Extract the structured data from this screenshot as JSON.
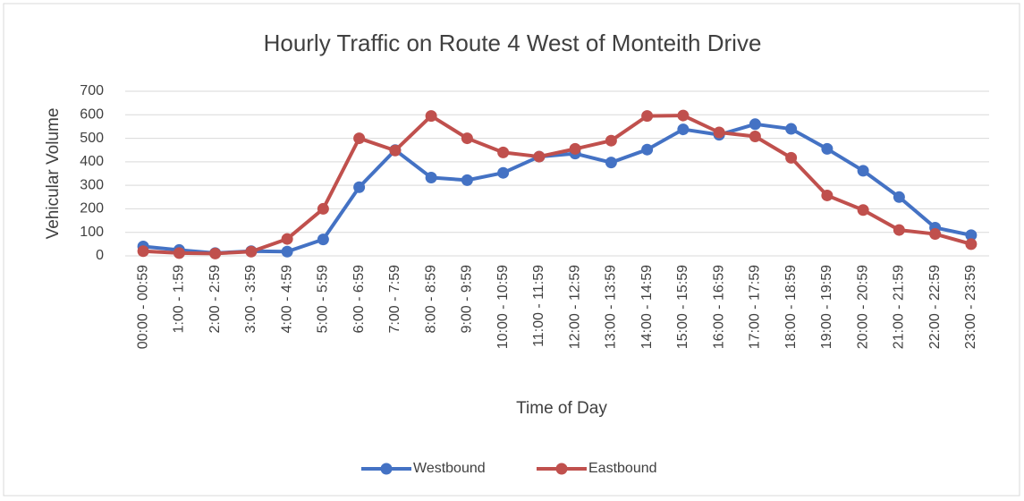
{
  "chart_data": {
    "type": "line",
    "title": "Hourly Traffic on Route 4 West of Monteith Drive",
    "x_label": "Time of Day",
    "y_label": "Vehicular Volume",
    "categories": [
      "00:00 - 00:59",
      "1:00 - 1:59",
      "2:00 - 2:59",
      "3:00 - 3:59",
      "4:00 - 4:59",
      "5:00 - 5:59",
      "6:00 - 6:59",
      "7:00 - 7:59",
      "8:00 - 8:59",
      "9:00 - 9:59",
      "10:00 - 10:59",
      "11:00 - 11:59",
      "12:00 - 12:59",
      "13:00 - 13:59",
      "14:00 - 14:59",
      "15:00 - 15:59",
      "16:00 - 16:59",
      "17:00 - 17:59",
      "18:00 - 18:59",
      "19:00 - 19:59",
      "20:00 - 20:59",
      "21:00 - 21:59",
      "22:00 - 22:59",
      "23:00 - 23:59"
    ],
    "series": [
      {
        "name": "Westbound",
        "color": "#4472c4",
        "values": [
          40,
          25,
          12,
          20,
          18,
          70,
          292,
          450,
          333,
          322,
          353,
          422,
          435,
          397,
          452,
          538,
          515,
          560,
          540,
          455,
          362,
          250,
          120,
          88
        ]
      },
      {
        "name": "Eastbound",
        "color": "#c0504d",
        "values": [
          20,
          12,
          10,
          18,
          72,
          200,
          500,
          448,
          595,
          500,
          440,
          422,
          455,
          490,
          595,
          597,
          525,
          508,
          417,
          257,
          195,
          110,
          93,
          50
        ]
      }
    ],
    "ylim": [
      0,
      700
    ],
    "yticks": [
      0,
      100,
      200,
      300,
      400,
      500,
      600,
      700
    ],
    "grid": true,
    "legend": "bottom"
  }
}
